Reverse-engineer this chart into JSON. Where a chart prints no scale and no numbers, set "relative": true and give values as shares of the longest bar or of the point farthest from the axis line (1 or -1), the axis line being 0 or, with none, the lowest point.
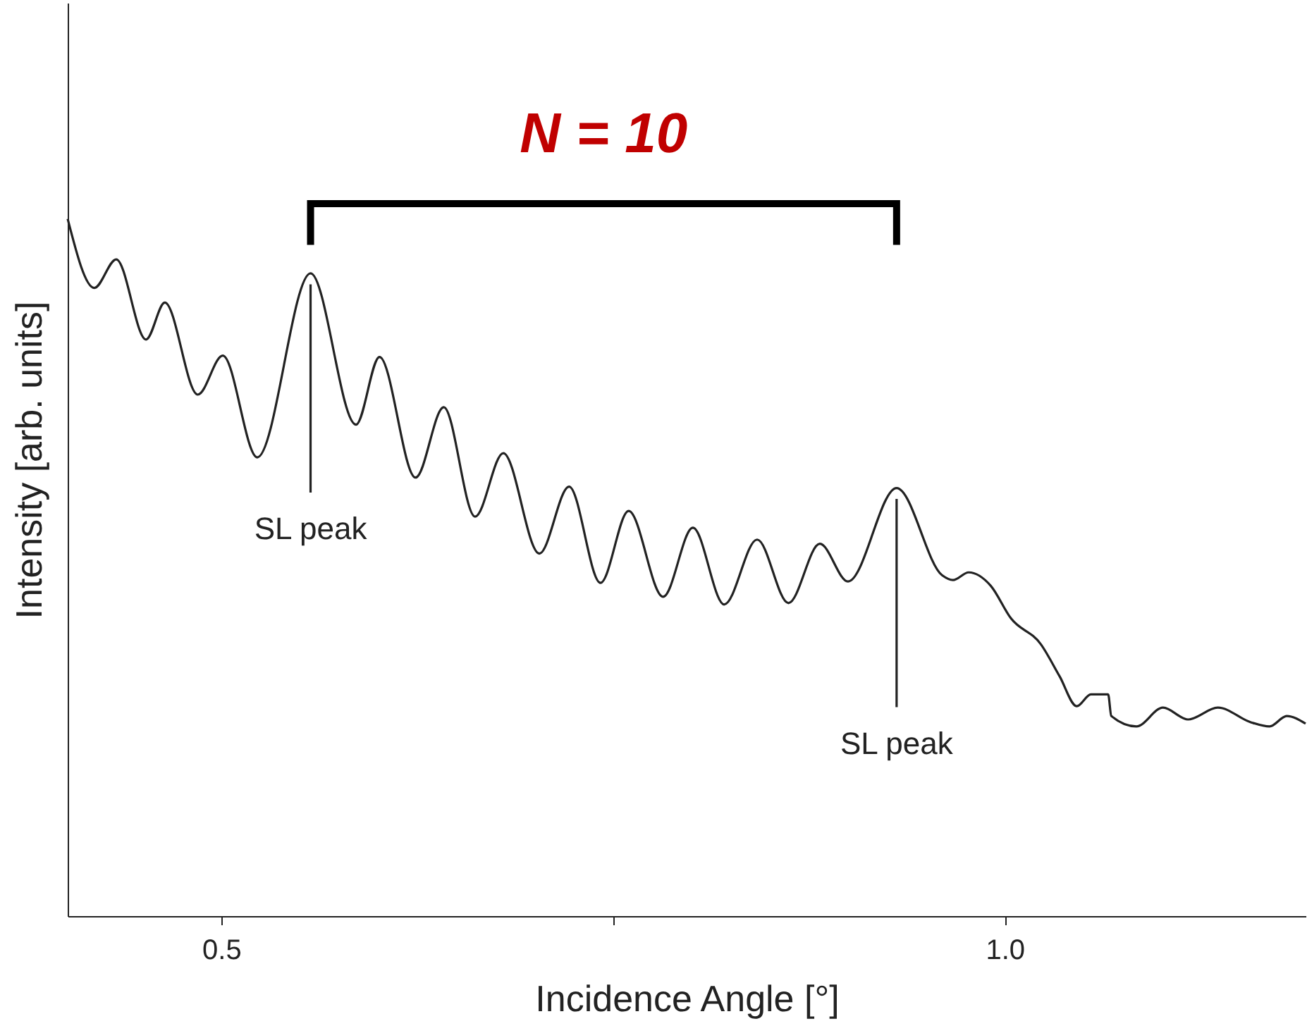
{
  "chart_data": {
    "type": "line",
    "relative": true,
    "xlabel": "Incidence Angle [°]",
    "ylabel": "Intensity [arb. units]",
    "xlim": [
      0.402,
      1.192
    ],
    "xticks": [
      0.5,
      {
        "value": 0.75,
        "label": null
      },
      {
        "value": 1,
        "label": "1.0"
      }
    ],
    "grid": false,
    "series": [
      {
        "color": "#222222",
        "x": [
          0.402,
          0.419,
          0.433,
          0.452,
          0.464,
          0.485,
          0.501,
          0.523,
          0.557,
          0.586,
          0.601,
          0.624,
          0.642,
          0.662,
          0.68,
          0.703,
          0.722,
          0.742,
          0.76,
          0.782,
          0.801,
          0.821,
          0.842,
          0.862,
          0.882,
          0.9,
          0.931,
          0.96,
          0.967,
          0.977,
          0.991,
          1.004,
          1.023,
          1.035,
          1.046,
          1.055,
          1.066,
          1.068,
          1.084,
          1.101,
          1.117,
          1.136,
          1.157,
          1.169,
          1.18,
          1.192
        ],
        "values": [
          1.0,
          0.901,
          0.942,
          0.827,
          0.88,
          0.748,
          0.804,
          0.658,
          0.922,
          0.705,
          0.802,
          0.629,
          0.73,
          0.573,
          0.664,
          0.52,
          0.616,
          0.478,
          0.581,
          0.458,
          0.557,
          0.447,
          0.54,
          0.449,
          0.534,
          0.48,
          0.614,
          0.489,
          0.482,
          0.493,
          0.474,
          0.427,
          0.39,
          0.344,
          0.301,
          0.318,
          0.318,
          0.287,
          0.272,
          0.299,
          0.282,
          0.299,
          0.278,
          0.272,
          0.287,
          0.276
        ]
      }
    ],
    "annotations": [
      "N = 10",
      {
        "text": "SL peak",
        "x": 0.557,
        "y": 0.922
      },
      {
        "text": "SL peak",
        "x": 0.931,
        "y": 0.614
      }
    ]
  }
}
